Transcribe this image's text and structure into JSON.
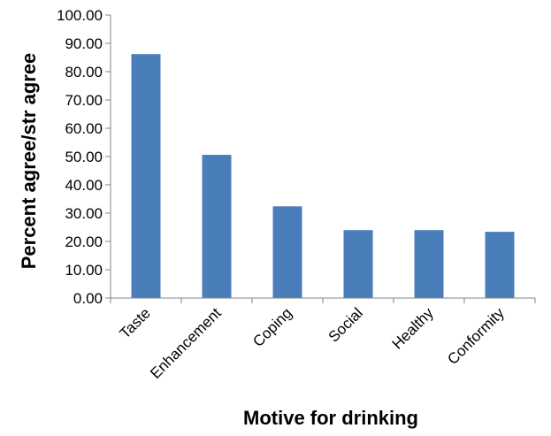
{
  "chart_data": {
    "type": "bar",
    "title": "",
    "xlabel": "Motive for drinking",
    "ylabel": "Percent agree/str agree",
    "categories": [
      "Taste",
      "Enhancement",
      "Coping",
      "Social",
      "Healthy",
      "Conformity"
    ],
    "values": [
      86.2,
      50.6,
      32.4,
      24.0,
      24.0,
      23.4
    ],
    "ylim": [
      0,
      100
    ],
    "yticks": [
      "0.00",
      "10.00",
      "20.00",
      "30.00",
      "40.00",
      "50.00",
      "60.00",
      "70.00",
      "80.00",
      "90.00",
      "100.00"
    ],
    "bar_color": "#4a7ebb",
    "grid": false,
    "legend": "none"
  }
}
